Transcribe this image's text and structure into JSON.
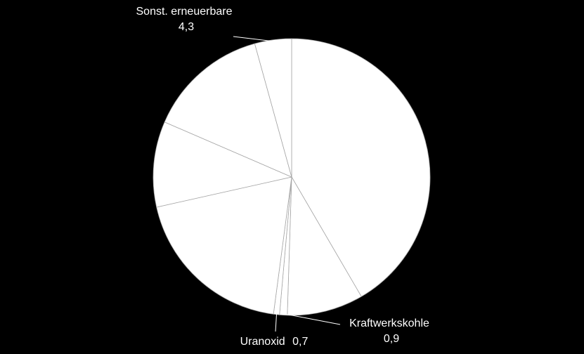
{
  "chart_data": {
    "type": "pie",
    "categories": [
      null,
      null,
      "Kraftwerkskohle",
      "Uranoxid",
      null,
      null,
      null,
      "Sonst. erneuerbare"
    ],
    "values": [
      41.6,
      8.9,
      0.9,
      0.7,
      19.4,
      10.0,
      14.2,
      4.3
    ],
    "value_labels": [
      null,
      null,
      "0,9",
      "0,7",
      null,
      null,
      null,
      "4,3"
    ],
    "color": "#ffffff"
  }
}
